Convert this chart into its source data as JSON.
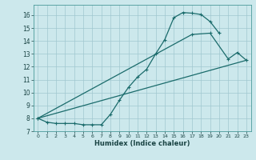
{
  "xlabel": "Humidex (Indice chaleur)",
  "bg_color": "#cce8ec",
  "grid_color": "#a0c8d0",
  "line_color": "#1a6b6b",
  "xlim": [
    -0.5,
    23.5
  ],
  "ylim": [
    7.0,
    16.8
  ],
  "xticks": [
    0,
    1,
    2,
    3,
    4,
    5,
    6,
    7,
    8,
    9,
    10,
    11,
    12,
    13,
    14,
    15,
    16,
    17,
    18,
    19,
    20,
    21,
    22,
    23
  ],
  "yticks": [
    7,
    8,
    9,
    10,
    11,
    12,
    13,
    14,
    15,
    16
  ],
  "curve_x": [
    0,
    1,
    2,
    3,
    4,
    5,
    6,
    7,
    8,
    9,
    10,
    11,
    12,
    13,
    14,
    15,
    16,
    17,
    18,
    19,
    20
  ],
  "curve_y": [
    8.0,
    7.7,
    7.6,
    7.6,
    7.6,
    7.5,
    7.5,
    7.5,
    8.3,
    9.4,
    10.4,
    11.2,
    11.8,
    13.0,
    14.1,
    15.8,
    16.2,
    16.15,
    16.05,
    15.5,
    14.6
  ],
  "line2_x": [
    0,
    17,
    19,
    21,
    22,
    23
  ],
  "line2_y": [
    8.0,
    14.5,
    14.6,
    12.6,
    13.1,
    12.5
  ],
  "line3_x": [
    0,
    23
  ],
  "line3_y": [
    8.0,
    12.5
  ]
}
